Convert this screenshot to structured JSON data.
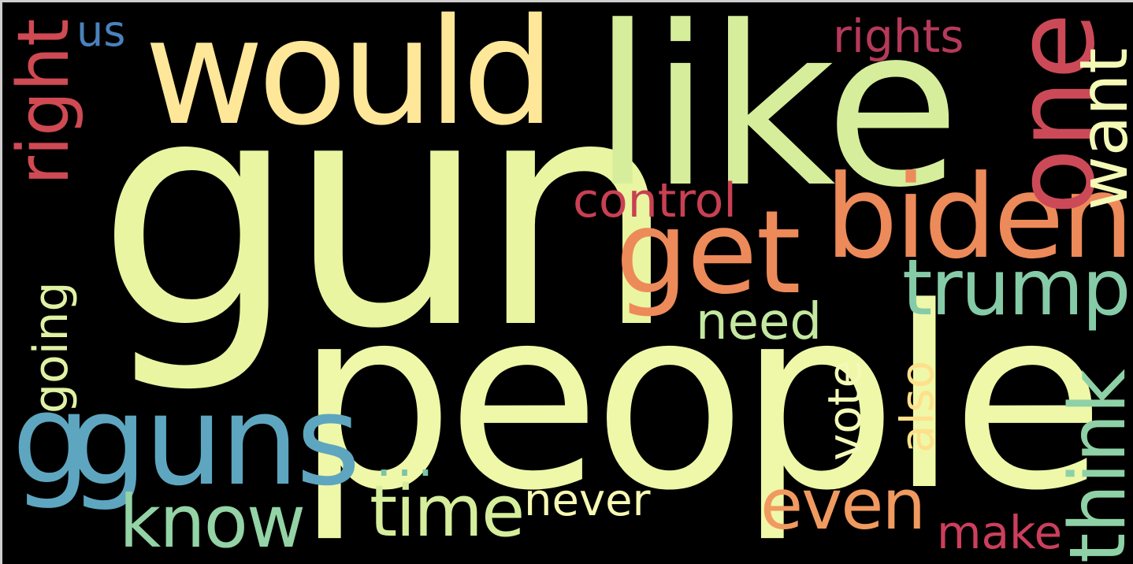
{
  "background": "#000000",
  "words": [
    {
      "key": "gun",
      "text": "gun",
      "color": "#e9f5a1"
    },
    {
      "key": "people",
      "text": "people",
      "color": "#eef8a8"
    },
    {
      "key": "like",
      "text": "like",
      "color": "#d6ee9b"
    },
    {
      "key": "would",
      "text": "would",
      "color": "#fee799"
    },
    {
      "key": "guns",
      "text": "guns",
      "color": "#5ea6c0"
    },
    {
      "key": "biden",
      "text": "biden",
      "color": "#ed8a5a"
    },
    {
      "key": "get",
      "text": "get",
      "color": "#ed8a5a"
    },
    {
      "key": "one",
      "text": "one",
      "color": "#cc4a57"
    },
    {
      "key": "trump",
      "text": "trump",
      "color": "#86cba7"
    },
    {
      "key": "think",
      "text": "think",
      "color": "#8fd1a6"
    },
    {
      "key": "want",
      "text": "want",
      "color": "#f4f9b6"
    },
    {
      "key": "right",
      "text": "right",
      "color": "#cf4a53"
    },
    {
      "key": "g",
      "text": "g",
      "color": "#5ea6c0"
    },
    {
      "key": "going",
      "text": "going",
      "color": "#dff2a3"
    },
    {
      "key": "know",
      "text": "know",
      "color": "#93d3a5"
    },
    {
      "key": "time",
      "text": "time",
      "color": "#d6ee9b"
    },
    {
      "key": "even",
      "text": "even",
      "color": "#f09a5f"
    },
    {
      "key": "control",
      "text": "control",
      "color": "#c84053"
    },
    {
      "key": "rights",
      "text": "rights",
      "color": "#b53a5a"
    },
    {
      "key": "need",
      "text": "need",
      "color": "#c4e89f"
    },
    {
      "key": "vote",
      "text": "vote",
      "color": "#f4f9b6"
    },
    {
      "key": "also",
      "text": "also",
      "color": "#fee08b"
    },
    {
      "key": "never",
      "text": "never",
      "color": "#f7f8b3"
    },
    {
      "key": "make",
      "text": "make",
      "color": "#cc3f5c"
    },
    {
      "key": "dots",
      "text": "...",
      "color": "#7ac3a9"
    },
    {
      "key": "us",
      "text": "us",
      "color": "#4a82bc"
    }
  ]
}
